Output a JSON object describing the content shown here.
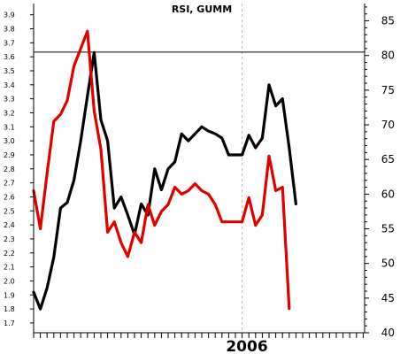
{
  "chart_data": {
    "type": "line",
    "title": "RSI, GUMM",
    "x_label_year": "2006",
    "left_axis": {
      "ticks": [
        "1.7",
        "1.8",
        "1.9",
        "2.0",
        "2.1",
        "2.2",
        "2.3",
        "2.4",
        "2.5",
        "2.6",
        "2.7",
        "2.8",
        "2.9",
        "3.0",
        "3.1",
        "3.2",
        "3.3",
        "3.4",
        "3.5",
        "3.6",
        "3.7",
        "3.8",
        "3.9"
      ],
      "range": [
        1.63,
        3.98
      ]
    },
    "right_axis": {
      "ticks": [
        "40",
        "45",
        "50",
        "55",
        "60",
        "65",
        "70",
        "75",
        "80",
        "85"
      ],
      "range": [
        40,
        87.5
      ]
    },
    "reference_line": {
      "axis": "right",
      "value": 80.5
    },
    "x_index_range": [
      0,
      50
    ],
    "x_divider_index": 31,
    "series": [
      {
        "axis": "left",
        "color": "#000000",
        "points": [
          [
            0,
            1.92
          ],
          [
            1,
            1.8
          ],
          [
            2,
            1.95
          ],
          [
            3,
            2.17
          ],
          [
            4,
            2.52
          ],
          [
            5,
            2.56
          ],
          [
            6,
            2.72
          ],
          [
            7,
            3.0
          ],
          [
            8,
            3.32
          ],
          [
            9,
            3.63
          ],
          [
            10,
            3.15
          ],
          [
            11,
            3.0
          ],
          [
            12,
            2.52
          ],
          [
            13,
            2.6
          ],
          [
            14,
            2.47
          ],
          [
            15,
            2.33
          ],
          [
            16,
            2.55
          ],
          [
            17,
            2.47
          ],
          [
            18,
            2.8
          ],
          [
            19,
            2.65
          ],
          [
            20,
            2.8
          ],
          [
            21,
            2.85
          ],
          [
            22,
            3.05
          ],
          [
            23,
            3.0
          ],
          [
            24,
            3.05
          ],
          [
            25,
            3.1
          ],
          [
            26,
            3.07
          ],
          [
            27,
            3.05
          ],
          [
            28,
            3.02
          ],
          [
            29,
            2.9
          ],
          [
            30,
            2.9
          ],
          [
            31,
            2.9
          ],
          [
            32,
            3.04
          ],
          [
            33,
            2.95
          ],
          [
            34,
            3.02
          ],
          [
            35,
            3.4
          ],
          [
            36,
            3.25
          ],
          [
            37,
            3.3
          ],
          [
            38,
            2.95
          ],
          [
            39,
            2.55
          ]
        ]
      },
      {
        "axis": "right",
        "color": "#e00000",
        "points": [
          [
            0,
            60.5
          ],
          [
            1,
            55.0
          ],
          [
            2,
            63.0
          ],
          [
            3,
            70.5
          ],
          [
            4,
            71.5
          ],
          [
            5,
            73.5
          ],
          [
            6,
            78.5
          ],
          [
            7,
            81.0
          ],
          [
            8,
            83.5
          ],
          [
            9,
            72.0
          ],
          [
            10,
            66.5
          ],
          [
            11,
            54.5
          ],
          [
            12,
            56.0
          ],
          [
            13,
            53.0
          ],
          [
            14,
            51.0
          ],
          [
            15,
            54.5
          ],
          [
            16,
            53.0
          ],
          [
            17,
            58.5
          ],
          [
            18,
            55.5
          ],
          [
            19,
            57.5
          ],
          [
            20,
            58.5
          ],
          [
            21,
            61.0
          ],
          [
            22,
            60.0
          ],
          [
            23,
            60.5
          ],
          [
            24,
            61.5
          ],
          [
            25,
            60.5
          ],
          [
            26,
            60.0
          ],
          [
            27,
            58.5
          ],
          [
            28,
            56.0
          ],
          [
            29,
            56.0
          ],
          [
            30,
            56.0
          ],
          [
            31,
            56.0
          ],
          [
            32,
            59.5
          ],
          [
            33,
            55.5
          ],
          [
            34,
            57.0
          ],
          [
            35,
            65.5
          ],
          [
            36,
            60.5
          ],
          [
            37,
            61.0
          ],
          [
            38,
            43.5
          ]
        ]
      }
    ]
  }
}
